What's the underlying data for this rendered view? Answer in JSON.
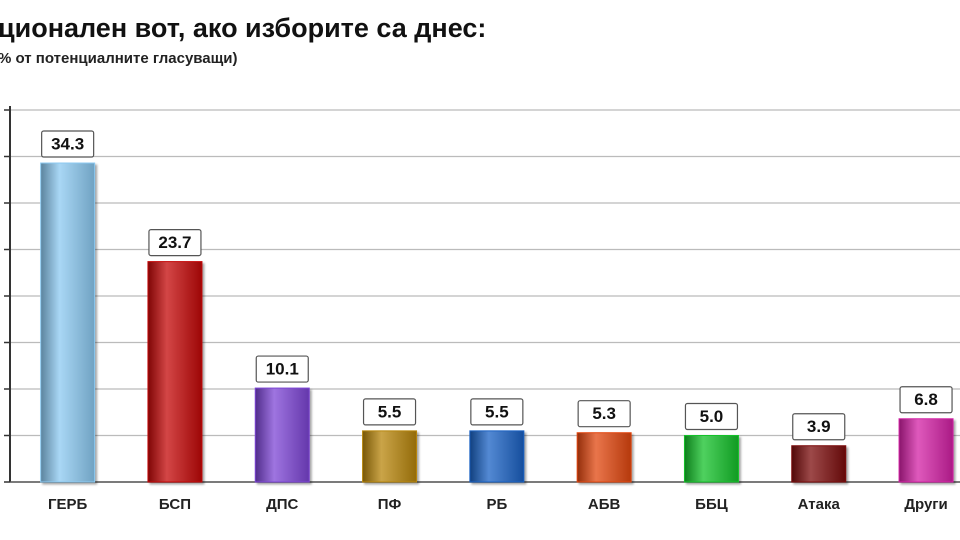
{
  "chart_data": {
    "type": "bar",
    "title": "ционален вот, ако изборите са днес:",
    "subtitle": "% от потенциалните гласуващи)",
    "categories": [
      "ГЕРБ",
      "БСП",
      "ДПС",
      "ПФ",
      "РБ",
      "АБВ",
      "ББЦ",
      "Атака",
      "Други"
    ],
    "values": [
      34.3,
      23.7,
      10.1,
      5.5,
      5.5,
      5.3,
      5.0,
      3.9,
      6.8
    ],
    "value_labels": [
      "34.3",
      "23.7",
      "10.1",
      "5.5",
      "5.5",
      "5.3",
      "5.0",
      "3.9",
      "6.8"
    ],
    "colors": [
      "#8ccaf2",
      "#c40808",
      "#7d45d6",
      "#b8860b",
      "#1a62c4",
      "#e2470f",
      "#14c22a",
      "#7c0c0c",
      "#d421a6"
    ],
    "ylim": [
      0,
      40
    ],
    "yticks": [
      0,
      5,
      10,
      15,
      20,
      25,
      30,
      35,
      40
    ],
    "grid": true
  }
}
